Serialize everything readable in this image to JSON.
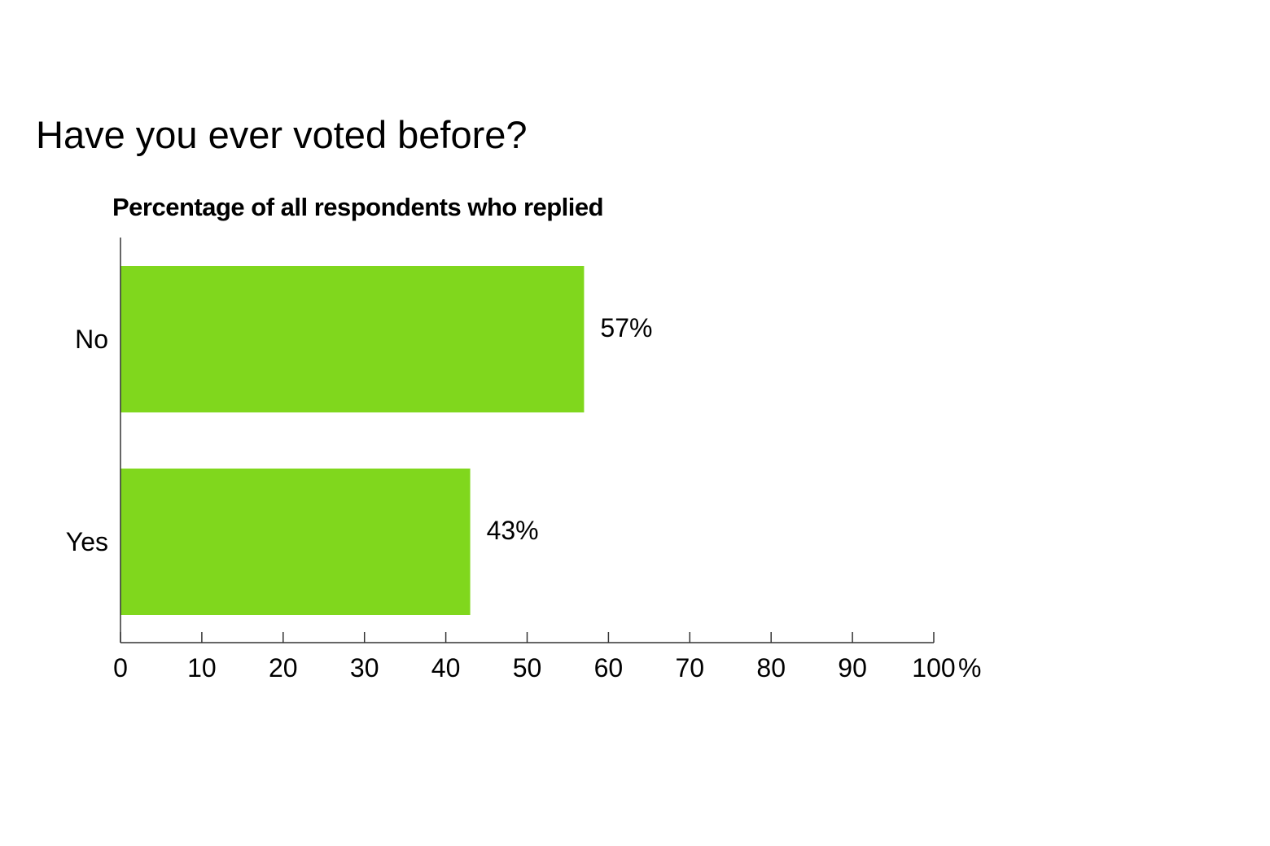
{
  "chart_data": {
    "type": "bar",
    "orientation": "horizontal",
    "title": "Have you ever voted before?",
    "subtitle": "Percentage of all respondents who replied",
    "categories": [
      "No",
      "Yes"
    ],
    "values": [
      57,
      43
    ],
    "data_labels": [
      "57%",
      "43%"
    ],
    "xlim": [
      0,
      100
    ],
    "xticks": [
      0,
      10,
      20,
      30,
      40,
      50,
      60,
      70,
      80,
      90,
      100
    ],
    "xtick_labels": [
      "0",
      "10",
      "20",
      "30",
      "40",
      "50",
      "60",
      "70",
      "80",
      "90",
      "100"
    ],
    "x_unit": "%",
    "grid": false,
    "bar_color": "#80d71d"
  }
}
